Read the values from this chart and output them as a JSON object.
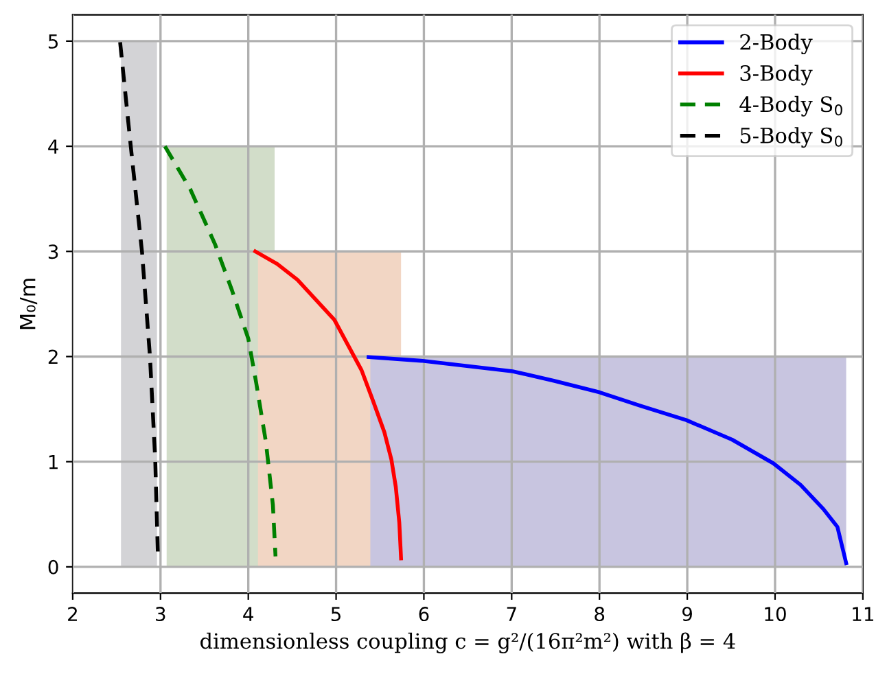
{
  "chart_data": {
    "type": "line",
    "xlabel": "dimensionless coupling c = g²/(16π²m²) with β = 4",
    "ylabel": "M₀/m",
    "xlim": [
      2,
      11
    ],
    "ylim": [
      -0.25,
      5.25
    ],
    "xticks": [
      2,
      3,
      4,
      5,
      6,
      7,
      8,
      9,
      10,
      11
    ],
    "yticks": [
      0,
      1,
      2,
      3,
      4,
      5
    ],
    "grid": true,
    "legend": "top right",
    "marker": "none",
    "series": [
      {
        "name": "2-Body",
        "color": "#0000ff",
        "line_style": "solid",
        "x": [
          5.37,
          5.97,
          7.01,
          7.48,
          8.0,
          8.47,
          8.99,
          9.51,
          9.98,
          10.29,
          10.55,
          10.71,
          10.81
        ],
        "values": [
          1.995,
          1.96,
          1.86,
          1.77,
          1.66,
          1.53,
          1.395,
          1.21,
          0.985,
          0.78,
          0.55,
          0.38,
          0.035
        ]
      },
      {
        "name": "3-Body",
        "color": "#ff0000",
        "line_style": "solid",
        "x": [
          4.08,
          4.33,
          4.56,
          4.98,
          5.29,
          5.42,
          5.55,
          5.63,
          5.68,
          5.72,
          5.74
        ],
        "values": [
          3.0,
          2.88,
          2.73,
          2.35,
          1.87,
          1.58,
          1.28,
          1.02,
          0.76,
          0.42,
          0.08
        ]
      },
      {
        "name": "4-Body S$_{0}$",
        "color": "#008000",
        "line_style": "dashed",
        "x": [
          3.05,
          3.34,
          3.62,
          3.81,
          4.0,
          4.09,
          4.2,
          4.28,
          4.31
        ],
        "values": [
          4.0,
          3.59,
          3.07,
          2.64,
          2.17,
          1.75,
          1.19,
          0.59,
          0.1
        ]
      },
      {
        "name": "5-Body S$_{0}$",
        "color": "#000000",
        "line_style": "dashed",
        "x": [
          2.54,
          2.66,
          2.79,
          2.88,
          2.94,
          2.97
        ],
        "values": [
          4.99,
          4.01,
          2.99,
          2.0,
          1.02,
          0.12
        ]
      },
      {
        "type": "area",
        "color": "#d3d3d6",
        "x": [
          2.55,
          2.96
        ],
        "values": [
          5,
          5
        ]
      },
      {
        "type": "area",
        "color": "#d2ddc9",
        "x": [
          3.07,
          4.3
        ],
        "values": [
          4,
          4
        ]
      },
      {
        "type": "area",
        "color": "#f2d6c4",
        "x": [
          4.11,
          5.74
        ],
        "values": [
          3,
          3
        ]
      },
      {
        "type": "area",
        "color": "#c8c5e0",
        "x": [
          5.39,
          10.81
        ],
        "values": [
          2,
          2
        ]
      }
    ]
  }
}
